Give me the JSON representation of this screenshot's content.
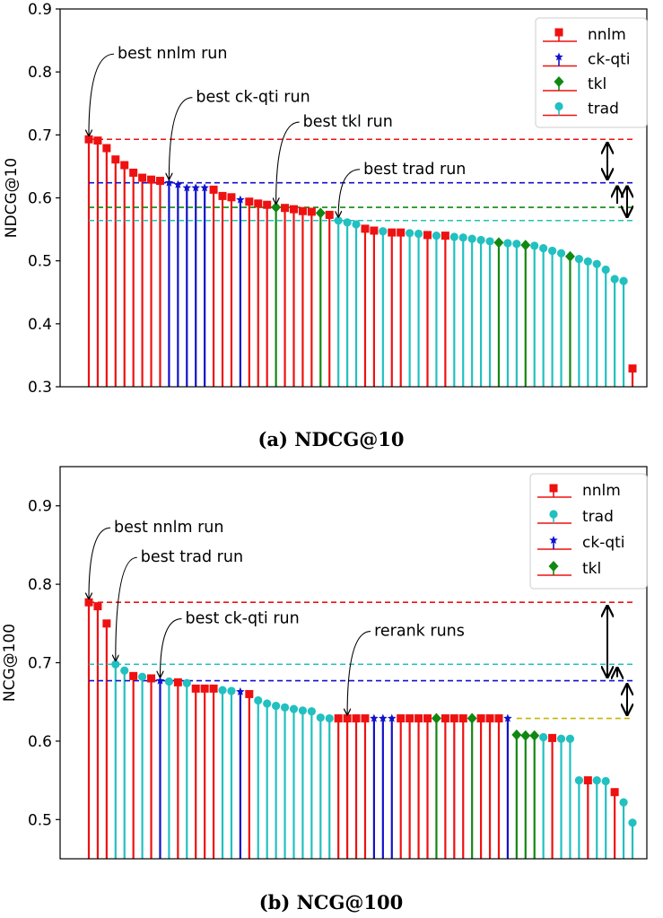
{
  "colors": {
    "nnlm": "#ee1111",
    "ck-qti": "#1111cc",
    "tkl": "#118811",
    "trad": "#22c0c0",
    "rerank": "#c8b400"
  },
  "chart_data": [
    {
      "type": "lollipop",
      "caption": "(a) NDCG@10",
      "ylabel": "NDCG@10",
      "ylim": [
        0.3,
        0.9
      ],
      "yticks": [
        0.3,
        0.4,
        0.5,
        0.6,
        0.7,
        0.8,
        0.9
      ],
      "legend": [
        {
          "key": "nnlm",
          "label": "nnlm"
        },
        {
          "key": "ck-qti",
          "label": "ck-qti"
        },
        {
          "key": "tkl",
          "label": "tkl"
        },
        {
          "key": "trad",
          "label": "trad"
        }
      ],
      "runs": [
        {
          "s": "nnlm",
          "v": 0.693
        },
        {
          "s": "nnlm",
          "v": 0.691
        },
        {
          "s": "nnlm",
          "v": 0.679
        },
        {
          "s": "nnlm",
          "v": 0.661
        },
        {
          "s": "nnlm",
          "v": 0.652
        },
        {
          "s": "nnlm",
          "v": 0.64
        },
        {
          "s": "nnlm",
          "v": 0.632
        },
        {
          "s": "nnlm",
          "v": 0.629
        },
        {
          "s": "nnlm",
          "v": 0.627
        },
        {
          "s": "ck-qti",
          "v": 0.624
        },
        {
          "s": "ck-qti",
          "v": 0.621
        },
        {
          "s": "ck-qti",
          "v": 0.616
        },
        {
          "s": "ck-qti",
          "v": 0.616
        },
        {
          "s": "ck-qti",
          "v": 0.616
        },
        {
          "s": "nnlm",
          "v": 0.613
        },
        {
          "s": "nnlm",
          "v": 0.603
        },
        {
          "s": "nnlm",
          "v": 0.601
        },
        {
          "s": "ck-qti",
          "v": 0.597
        },
        {
          "s": "nnlm",
          "v": 0.594
        },
        {
          "s": "nnlm",
          "v": 0.591
        },
        {
          "s": "nnlm",
          "v": 0.589
        },
        {
          "s": "tkl",
          "v": 0.585
        },
        {
          "s": "nnlm",
          "v": 0.584
        },
        {
          "s": "nnlm",
          "v": 0.582
        },
        {
          "s": "nnlm",
          "v": 0.579
        },
        {
          "s": "nnlm",
          "v": 0.578
        },
        {
          "s": "tkl",
          "v": 0.576
        },
        {
          "s": "nnlm",
          "v": 0.573
        },
        {
          "s": "trad",
          "v": 0.564
        },
        {
          "s": "trad",
          "v": 0.561
        },
        {
          "s": "trad",
          "v": 0.558
        },
        {
          "s": "nnlm",
          "v": 0.551
        },
        {
          "s": "nnlm",
          "v": 0.548
        },
        {
          "s": "trad",
          "v": 0.547
        },
        {
          "s": "nnlm",
          "v": 0.545
        },
        {
          "s": "nnlm",
          "v": 0.545
        },
        {
          "s": "trad",
          "v": 0.544
        },
        {
          "s": "trad",
          "v": 0.543
        },
        {
          "s": "nnlm",
          "v": 0.541
        },
        {
          "s": "trad",
          "v": 0.54
        },
        {
          "s": "nnlm",
          "v": 0.54
        },
        {
          "s": "trad",
          "v": 0.538
        },
        {
          "s": "trad",
          "v": 0.537
        },
        {
          "s": "trad",
          "v": 0.535
        },
        {
          "s": "trad",
          "v": 0.533
        },
        {
          "s": "trad",
          "v": 0.531
        },
        {
          "s": "tkl",
          "v": 0.529
        },
        {
          "s": "trad",
          "v": 0.528
        },
        {
          "s": "trad",
          "v": 0.527
        },
        {
          "s": "tkl",
          "v": 0.525
        },
        {
          "s": "trad",
          "v": 0.524
        },
        {
          "s": "trad",
          "v": 0.52
        },
        {
          "s": "trad",
          "v": 0.516
        },
        {
          "s": "trad",
          "v": 0.512
        },
        {
          "s": "tkl",
          "v": 0.507
        },
        {
          "s": "trad",
          "v": 0.503
        },
        {
          "s": "trad",
          "v": 0.499
        },
        {
          "s": "trad",
          "v": 0.495
        },
        {
          "s": "trad",
          "v": 0.486
        },
        {
          "s": "trad",
          "v": 0.471
        },
        {
          "s": "trad",
          "v": 0.468
        },
        {
          "s": "nnlm",
          "v": 0.329
        }
      ],
      "reference_lines": [
        {
          "series": "nnlm",
          "value": 0.693
        },
        {
          "series": "ck-qti",
          "value": 0.624
        },
        {
          "series": "tkl",
          "value": 0.585
        },
        {
          "series": "trad",
          "value": 0.564
        }
      ],
      "gap_arrows": [
        {
          "from": 0.693,
          "to": 0.624,
          "heads": "both"
        },
        {
          "from": 0.624,
          "to": 0.585,
          "heads": "top"
        },
        {
          "from": 0.624,
          "to": 0.564,
          "heads": "both"
        }
      ],
      "annotations": [
        {
          "text": "best nnlm run",
          "run": 0,
          "dx": 32,
          "dy": -86
        },
        {
          "text": "best ck-qti run",
          "run": 9,
          "dx": 30,
          "dy": -86
        },
        {
          "text": "best tkl run",
          "run": 21,
          "dx": 30,
          "dy": -86
        },
        {
          "text": "best trad run",
          "run": 28,
          "dx": 28,
          "dy": -48
        }
      ]
    },
    {
      "type": "lollipop",
      "caption": "(b) NCG@100",
      "ylabel": "NCG@100",
      "ylim": [
        0.45,
        0.95
      ],
      "yticks": [
        0.5,
        0.6,
        0.7,
        0.8,
        0.9
      ],
      "legend": [
        {
          "key": "nnlm",
          "label": "nnlm"
        },
        {
          "key": "trad",
          "label": "trad"
        },
        {
          "key": "ck-qti",
          "label": "ck-qti"
        },
        {
          "key": "tkl",
          "label": "tkl"
        }
      ],
      "runs": [
        {
          "s": "nnlm",
          "v": 0.777
        },
        {
          "s": "nnlm",
          "v": 0.772
        },
        {
          "s": "nnlm",
          "v": 0.75
        },
        {
          "s": "trad",
          "v": 0.698
        },
        {
          "s": "trad",
          "v": 0.69
        },
        {
          "s": "nnlm",
          "v": 0.683
        },
        {
          "s": "trad",
          "v": 0.682
        },
        {
          "s": "nnlm",
          "v": 0.68
        },
        {
          "s": "ck-qti",
          "v": 0.677
        },
        {
          "s": "trad",
          "v": 0.676
        },
        {
          "s": "nnlm",
          "v": 0.675
        },
        {
          "s": "trad",
          "v": 0.674
        },
        {
          "s": "nnlm",
          "v": 0.667
        },
        {
          "s": "nnlm",
          "v": 0.667
        },
        {
          "s": "nnlm",
          "v": 0.667
        },
        {
          "s": "trad",
          "v": 0.665
        },
        {
          "s": "trad",
          "v": 0.664
        },
        {
          "s": "ck-qti",
          "v": 0.663
        },
        {
          "s": "nnlm",
          "v": 0.66
        },
        {
          "s": "trad",
          "v": 0.652
        },
        {
          "s": "trad",
          "v": 0.648
        },
        {
          "s": "trad",
          "v": 0.645
        },
        {
          "s": "trad",
          "v": 0.643
        },
        {
          "s": "trad",
          "v": 0.641
        },
        {
          "s": "trad",
          "v": 0.639
        },
        {
          "s": "trad",
          "v": 0.638
        },
        {
          "s": "trad",
          "v": 0.63
        },
        {
          "s": "trad",
          "v": 0.629
        },
        {
          "s": "nnlm",
          "v": 0.629
        },
        {
          "s": "nnlm",
          "v": 0.629
        },
        {
          "s": "nnlm",
          "v": 0.629
        },
        {
          "s": "nnlm",
          "v": 0.629
        },
        {
          "s": "ck-qti",
          "v": 0.629
        },
        {
          "s": "ck-qti",
          "v": 0.629
        },
        {
          "s": "ck-qti",
          "v": 0.629
        },
        {
          "s": "nnlm",
          "v": 0.629
        },
        {
          "s": "nnlm",
          "v": 0.629
        },
        {
          "s": "nnlm",
          "v": 0.629
        },
        {
          "s": "nnlm",
          "v": 0.629
        },
        {
          "s": "tkl",
          "v": 0.629
        },
        {
          "s": "nnlm",
          "v": 0.629
        },
        {
          "s": "nnlm",
          "v": 0.629
        },
        {
          "s": "nnlm",
          "v": 0.629
        },
        {
          "s": "tkl",
          "v": 0.629
        },
        {
          "s": "nnlm",
          "v": 0.629
        },
        {
          "s": "nnlm",
          "v": 0.629
        },
        {
          "s": "nnlm",
          "v": 0.629
        },
        {
          "s": "ck-qti",
          "v": 0.629
        },
        {
          "s": "tkl",
          "v": 0.608
        },
        {
          "s": "tkl",
          "v": 0.607
        },
        {
          "s": "tkl",
          "v": 0.607
        },
        {
          "s": "trad",
          "v": 0.605
        },
        {
          "s": "nnlm",
          "v": 0.604
        },
        {
          "s": "trad",
          "v": 0.603
        },
        {
          "s": "trad",
          "v": 0.603
        },
        {
          "s": "trad",
          "v": 0.55
        },
        {
          "s": "nnlm",
          "v": 0.55
        },
        {
          "s": "trad",
          "v": 0.55
        },
        {
          "s": "trad",
          "v": 0.549
        },
        {
          "s": "nnlm",
          "v": 0.535
        },
        {
          "s": "trad",
          "v": 0.522
        },
        {
          "s": "trad",
          "v": 0.496
        }
      ],
      "reference_lines": [
        {
          "series": "nnlm",
          "value": 0.777
        },
        {
          "series": "trad",
          "value": 0.698
        },
        {
          "series": "ck-qti",
          "value": 0.677
        },
        {
          "series": "rerank",
          "value": 0.629,
          "from_run": 48
        }
      ],
      "gap_arrows": [
        {
          "from": 0.777,
          "to": 0.677,
          "heads": "both"
        },
        {
          "from": 0.698,
          "to": 0.677,
          "heads": "top"
        },
        {
          "from": 0.677,
          "to": 0.629,
          "heads": "both"
        }
      ],
      "annotations": [
        {
          "text": "best nnlm run",
          "run": 0,
          "dx": 28,
          "dy": -74
        },
        {
          "text": "best trad run",
          "run": 3,
          "dx": 28,
          "dy": -110
        },
        {
          "text": "best ck-qti run",
          "run": 8,
          "dx": 28,
          "dy": -60
        },
        {
          "text": "rerank runs",
          "run": 29,
          "dx": 30,
          "dy": -88
        }
      ]
    }
  ]
}
